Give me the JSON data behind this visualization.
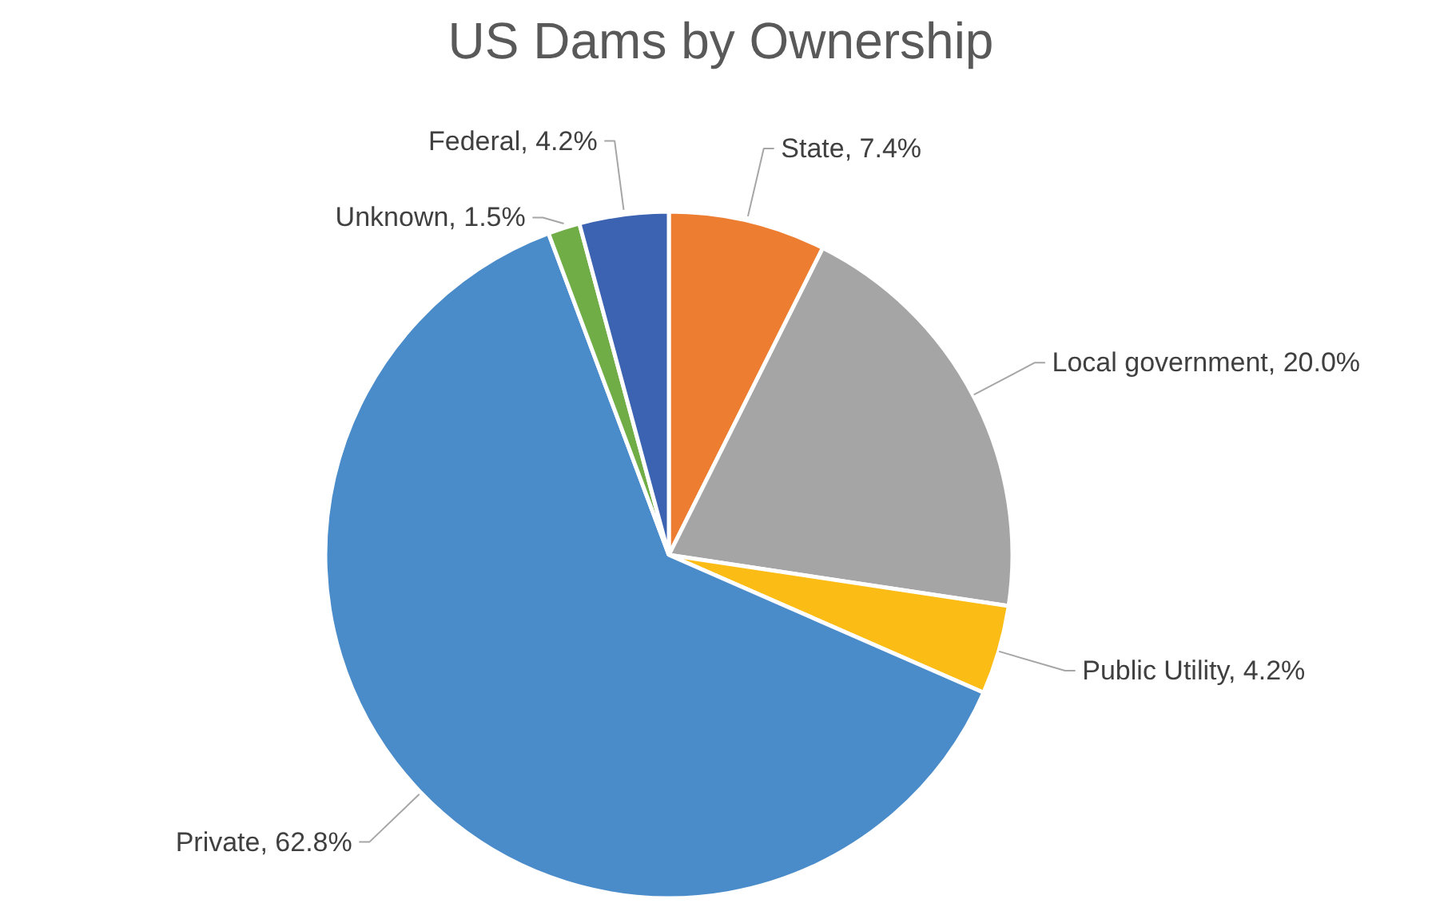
{
  "chart_data": {
    "type": "pie",
    "title": "US Dams by Ownership",
    "categories": [
      "State",
      "Local government",
      "Public Utility",
      "Private",
      "Unknown",
      "Federal"
    ],
    "values": [
      7.4,
      20.0,
      4.2,
      62.8,
      1.5,
      4.2
    ],
    "colors": [
      "#ed7d31",
      "#a5a5a5",
      "#fbbc16",
      "#4a8bc9",
      "#70ad47",
      "#3b63b1"
    ],
    "value_labels": [
      "7.4%",
      "20.0%",
      "4.2%",
      "62.8%",
      "1.5%",
      "4.2%"
    ]
  }
}
